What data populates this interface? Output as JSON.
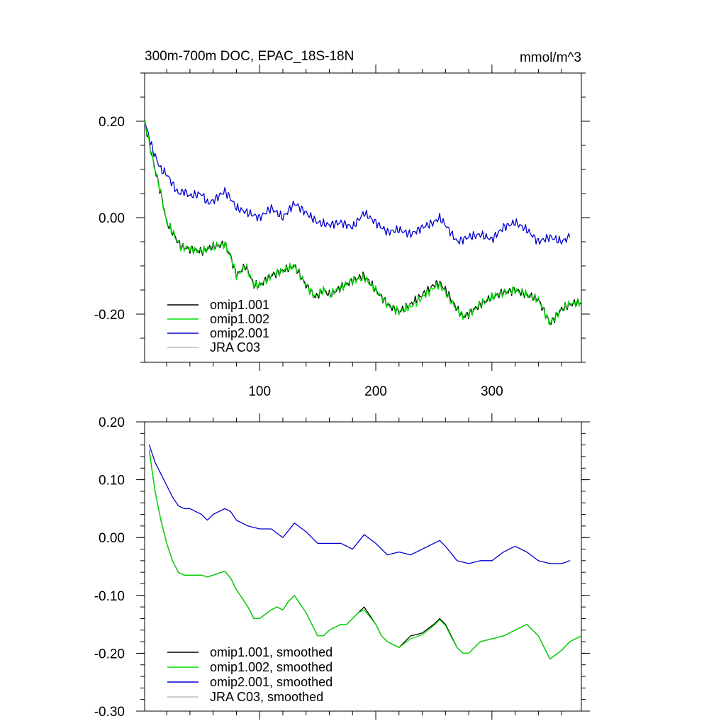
{
  "chart_data": [
    {
      "type": "line",
      "title": "300m-700m DOC, EPAC_18S-18N",
      "units": "mmol/m^3",
      "xlim": [
        1,
        377
      ],
      "ylim": [
        -0.3,
        0.3
      ],
      "xticks": [
        100,
        200,
        300
      ],
      "yticks": [
        0.2,
        0.0,
        -0.2
      ],
      "ytick_labels": [
        "0.20",
        "0.00",
        "-0.20"
      ],
      "xtick_labels": [
        "100",
        "200",
        "300"
      ],
      "legend": [
        "omip1.001",
        "omip1.002",
        "omip2.001",
        "JRA C03"
      ],
      "legend_colors": [
        "#000000",
        "#00dd00",
        "#0000cc",
        "#bbbbbb"
      ],
      "series": [
        {
          "name": "omip1.001",
          "color": "#000000",
          "x": [
            1,
            8,
            15,
            20,
            25,
            32,
            40,
            50,
            60,
            70,
            75,
            80,
            88,
            95,
            100,
            110,
            120,
            130,
            140,
            148,
            155,
            160,
            170,
            180,
            190,
            200,
            210,
            220,
            230,
            240,
            250,
            255,
            260,
            265,
            270,
            275,
            280,
            290,
            300,
            310,
            320,
            330,
            340,
            350,
            360,
            367,
            377
          ],
          "y": [
            0.2,
            0.12,
            0.05,
            -0.01,
            -0.03,
            -0.06,
            -0.065,
            -0.07,
            -0.06,
            -0.055,
            -0.08,
            -0.12,
            -0.1,
            -0.14,
            -0.14,
            -0.12,
            -0.11,
            -0.1,
            -0.14,
            -0.165,
            -0.15,
            -0.16,
            -0.145,
            -0.13,
            -0.12,
            -0.15,
            -0.18,
            -0.195,
            -0.18,
            -0.16,
            -0.14,
            -0.135,
            -0.15,
            -0.17,
            -0.19,
            -0.205,
            -0.2,
            -0.18,
            -0.165,
            -0.155,
            -0.15,
            -0.16,
            -0.17,
            -0.22,
            -0.19,
            -0.18,
            -0.175
          ]
        },
        {
          "name": "omip1.002",
          "color": "#00dd00",
          "x": [
            1,
            8,
            15,
            20,
            25,
            32,
            40,
            50,
            60,
            70,
            75,
            80,
            88,
            95,
            100,
            110,
            120,
            130,
            140,
            148,
            155,
            160,
            170,
            180,
            190,
            200,
            210,
            220,
            230,
            240,
            250,
            255,
            260,
            265,
            270,
            275,
            280,
            290,
            300,
            310,
            320,
            330,
            340,
            350,
            360,
            367,
            377
          ],
          "y": [
            0.2,
            0.12,
            0.05,
            -0.01,
            -0.03,
            -0.06,
            -0.065,
            -0.07,
            -0.06,
            -0.055,
            -0.08,
            -0.12,
            -0.1,
            -0.14,
            -0.14,
            -0.12,
            -0.11,
            -0.1,
            -0.14,
            -0.165,
            -0.15,
            -0.16,
            -0.145,
            -0.13,
            -0.125,
            -0.15,
            -0.18,
            -0.195,
            -0.185,
            -0.165,
            -0.145,
            -0.14,
            -0.155,
            -0.175,
            -0.19,
            -0.205,
            -0.2,
            -0.18,
            -0.165,
            -0.155,
            -0.15,
            -0.16,
            -0.17,
            -0.22,
            -0.19,
            -0.18,
            -0.175
          ]
        },
        {
          "name": "omip2.001",
          "color": "#0000cc",
          "x": [
            1,
            8,
            15,
            20,
            25,
            30,
            35,
            40,
            50,
            55,
            60,
            70,
            75,
            80,
            90,
            100,
            110,
            120,
            130,
            140,
            150,
            160,
            170,
            180,
            190,
            200,
            210,
            220,
            230,
            240,
            250,
            255,
            260,
            270,
            280,
            290,
            300,
            310,
            320,
            330,
            340,
            350,
            360,
            367
          ],
          "y": [
            0.2,
            0.14,
            0.1,
            0.09,
            0.07,
            0.05,
            0.055,
            0.045,
            0.05,
            0.03,
            0.035,
            0.055,
            0.04,
            0.02,
            0.01,
            0.0,
            0.02,
            0.0,
            0.03,
            0.01,
            -0.01,
            -0.015,
            -0.01,
            -0.02,
            0.01,
            -0.01,
            -0.03,
            -0.025,
            -0.035,
            -0.02,
            -0.01,
            0.0,
            -0.015,
            -0.05,
            -0.04,
            -0.035,
            -0.045,
            -0.02,
            -0.01,
            -0.025,
            -0.05,
            -0.04,
            -0.05,
            -0.04
          ]
        },
        {
          "name": "JRA C03",
          "color": "#bbbbbb",
          "x": [],
          "y": []
        }
      ]
    },
    {
      "type": "line",
      "title": "",
      "xlim": [
        1,
        377
      ],
      "ylim": [
        -0.3,
        0.2
      ],
      "xticks": [
        100,
        200,
        300
      ],
      "yticks": [
        0.2,
        0.1,
        0.0,
        -0.1,
        -0.2,
        -0.3
      ],
      "ytick_labels": [
        "0.20",
        "0.10",
        "0.00",
        "-0.10",
        "-0.20",
        "-0.30"
      ],
      "xtick_labels": [],
      "legend": [
        "omip1.001, smoothed",
        "omip1.002, smoothed",
        "omip2.001, smoothed",
        "JRA C03, smoothed"
      ],
      "legend_colors": [
        "#000000",
        "#00dd00",
        "#0000cc",
        "#bbbbbb"
      ],
      "series": [
        {
          "name": "omip1.001, smoothed",
          "color": "#000000",
          "x": [
            5,
            10,
            15,
            20,
            25,
            30,
            35,
            40,
            50,
            55,
            60,
            70,
            75,
            80,
            90,
            95,
            100,
            110,
            115,
            120,
            125,
            130,
            140,
            150,
            155,
            160,
            170,
            175,
            180,
            185,
            190,
            200,
            205,
            210,
            220,
            230,
            240,
            250,
            255,
            260,
            265,
            270,
            275,
            280,
            290,
            300,
            310,
            320,
            330,
            340,
            345,
            350,
            360,
            367,
            377
          ],
          "y": [
            0.15,
            0.08,
            0.03,
            -0.01,
            -0.04,
            -0.06,
            -0.065,
            -0.065,
            -0.065,
            -0.068,
            -0.065,
            -0.058,
            -0.07,
            -0.09,
            -0.12,
            -0.14,
            -0.14,
            -0.125,
            -0.12,
            -0.125,
            -0.11,
            -0.1,
            -0.13,
            -0.17,
            -0.17,
            -0.16,
            -0.15,
            -0.15,
            -0.14,
            -0.13,
            -0.12,
            -0.15,
            -0.17,
            -0.18,
            -0.19,
            -0.17,
            -0.165,
            -0.15,
            -0.14,
            -0.15,
            -0.17,
            -0.19,
            -0.2,
            -0.2,
            -0.18,
            -0.175,
            -0.17,
            -0.16,
            -0.15,
            -0.17,
            -0.19,
            -0.21,
            -0.195,
            -0.18,
            -0.17
          ]
        },
        {
          "name": "omip1.002, smoothed",
          "color": "#00dd00",
          "x": [
            5,
            10,
            15,
            20,
            25,
            30,
            35,
            40,
            50,
            55,
            60,
            70,
            75,
            80,
            90,
            95,
            100,
            110,
            115,
            120,
            125,
            130,
            140,
            150,
            155,
            160,
            170,
            175,
            180,
            185,
            190,
            200,
            205,
            210,
            220,
            230,
            240,
            250,
            255,
            260,
            265,
            270,
            275,
            280,
            290,
            300,
            310,
            320,
            330,
            340,
            345,
            350,
            360,
            367,
            377
          ],
          "y": [
            0.15,
            0.08,
            0.03,
            -0.01,
            -0.04,
            -0.06,
            -0.065,
            -0.065,
            -0.065,
            -0.068,
            -0.065,
            -0.058,
            -0.07,
            -0.09,
            -0.12,
            -0.14,
            -0.14,
            -0.125,
            -0.12,
            -0.125,
            -0.11,
            -0.1,
            -0.13,
            -0.17,
            -0.17,
            -0.16,
            -0.15,
            -0.15,
            -0.14,
            -0.13,
            -0.125,
            -0.15,
            -0.17,
            -0.18,
            -0.19,
            -0.175,
            -0.168,
            -0.152,
            -0.142,
            -0.152,
            -0.172,
            -0.19,
            -0.2,
            -0.2,
            -0.18,
            -0.175,
            -0.17,
            -0.16,
            -0.15,
            -0.17,
            -0.19,
            -0.21,
            -0.195,
            -0.18,
            -0.17
          ]
        },
        {
          "name": "omip2.001, smoothed",
          "color": "#0000cc",
          "x": [
            5,
            10,
            15,
            20,
            25,
            30,
            35,
            40,
            45,
            50,
            55,
            60,
            70,
            75,
            80,
            90,
            100,
            110,
            120,
            130,
            140,
            150,
            160,
            170,
            180,
            190,
            200,
            210,
            220,
            230,
            240,
            250,
            255,
            260,
            270,
            280,
            290,
            300,
            310,
            320,
            330,
            340,
            350,
            360,
            367
          ],
          "y": [
            0.16,
            0.13,
            0.11,
            0.09,
            0.07,
            0.055,
            0.05,
            0.05,
            0.045,
            0.04,
            0.03,
            0.04,
            0.05,
            0.045,
            0.03,
            0.02,
            0.015,
            0.015,
            0.0,
            0.025,
            0.01,
            -0.01,
            -0.01,
            -0.01,
            -0.02,
            0.005,
            -0.01,
            -0.03,
            -0.025,
            -0.03,
            -0.02,
            -0.01,
            -0.005,
            -0.015,
            -0.04,
            -0.045,
            -0.04,
            -0.04,
            -0.025,
            -0.015,
            -0.025,
            -0.04,
            -0.045,
            -0.045,
            -0.04
          ]
        },
        {
          "name": "JRA C03, smoothed",
          "color": "#bbbbbb",
          "x": [],
          "y": []
        }
      ]
    }
  ]
}
